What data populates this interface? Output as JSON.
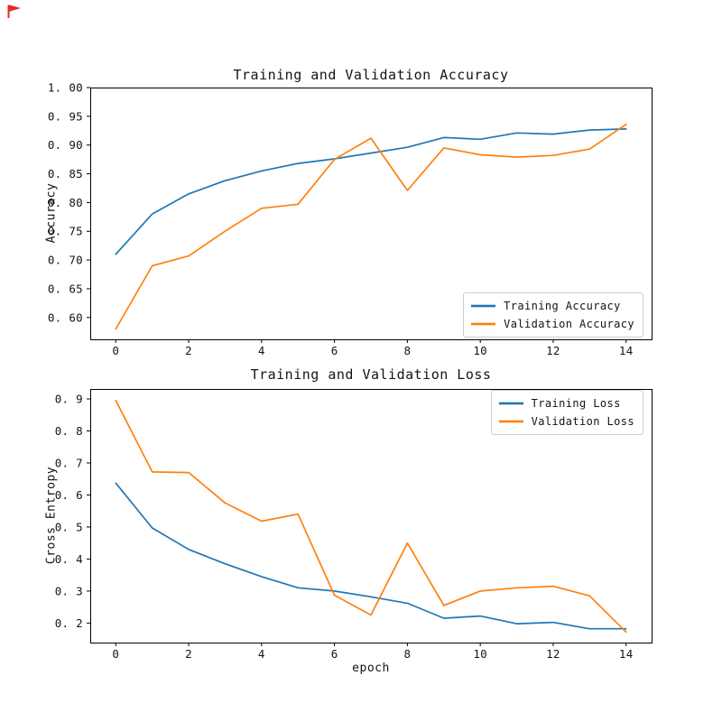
{
  "figure": {
    "background": "#ffffff",
    "flag_color": "#e02b2b",
    "axis_color": "#000000",
    "text_color": "#141414"
  },
  "chart_data": [
    {
      "type": "line",
      "title": "Training and Validation Accuracy",
      "xlabel": "",
      "ylabel": "Accuracy",
      "x": [
        0,
        1,
        2,
        3,
        4,
        5,
        6,
        7,
        8,
        9,
        10,
        11,
        12,
        13,
        14
      ],
      "series": [
        {
          "name": "Training Accuracy",
          "color": "#1f77b4",
          "values": [
            0.71,
            0.78,
            0.815,
            0.838,
            0.855,
            0.868,
            0.876,
            0.886,
            0.896,
            0.913,
            0.91,
            0.921,
            0.919,
            0.926,
            0.928
          ]
        },
        {
          "name": "Validation Accuracy",
          "color": "#ff7f0e",
          "values": [
            0.58,
            0.69,
            0.707,
            0.75,
            0.79,
            0.797,
            0.875,
            0.912,
            0.821,
            0.895,
            0.883,
            0.879,
            0.882,
            0.893,
            0.936
          ]
        }
      ],
      "xlim": [
        -0.7,
        14.7
      ],
      "ylim": [
        0.562,
        1.0
      ],
      "xticks": [
        0,
        2,
        4,
        6,
        8,
        10,
        12,
        14
      ],
      "xtick_labels": [
        "0",
        "2",
        "4",
        "6",
        "8",
        "10",
        "12",
        "14"
      ],
      "yticks": [
        0.6,
        0.65,
        0.7,
        0.75,
        0.8,
        0.85,
        0.9,
        0.95,
        1.0
      ],
      "ytick_labels": [
        "0. 60",
        "0. 65",
        "0. 70",
        "0. 75",
        "0. 80",
        "0. 85",
        "0. 90",
        "0. 95",
        "1. 00"
      ],
      "legend_loc": "lower right",
      "grid": false
    },
    {
      "type": "line",
      "title": "Training and Validation Loss",
      "xlabel": "epoch",
      "ylabel": "Cross Entropy",
      "x": [
        0,
        1,
        2,
        3,
        4,
        5,
        6,
        7,
        8,
        9,
        10,
        11,
        12,
        13,
        14
      ],
      "series": [
        {
          "name": "Training Loss",
          "color": "#1f77b4",
          "values": [
            0.637,
            0.497,
            0.43,
            0.385,
            0.345,
            0.31,
            0.3,
            0.282,
            0.262,
            0.215,
            0.222,
            0.198,
            0.202,
            0.182,
            0.182
          ]
        },
        {
          "name": "Validation Loss",
          "color": "#ff7f0e",
          "values": [
            0.895,
            0.672,
            0.67,
            0.575,
            0.518,
            0.54,
            0.287,
            0.225,
            0.45,
            0.255,
            0.3,
            0.31,
            0.315,
            0.285,
            0.172
          ]
        }
      ],
      "xlim": [
        -0.7,
        14.7
      ],
      "ylim": [
        0.139,
        0.931
      ],
      "xticks": [
        0,
        2,
        4,
        6,
        8,
        10,
        12,
        14
      ],
      "xtick_labels": [
        "0",
        "2",
        "4",
        "6",
        "8",
        "10",
        "12",
        "14"
      ],
      "yticks": [
        0.2,
        0.3,
        0.4,
        0.5,
        0.6,
        0.7,
        0.8,
        0.9
      ],
      "ytick_labels": [
        "0. 2",
        "0. 3",
        "0. 4",
        "0. 5",
        "0. 6",
        "0. 7",
        "0. 8",
        "0. 9"
      ],
      "legend_loc": "upper right",
      "grid": false
    }
  ]
}
